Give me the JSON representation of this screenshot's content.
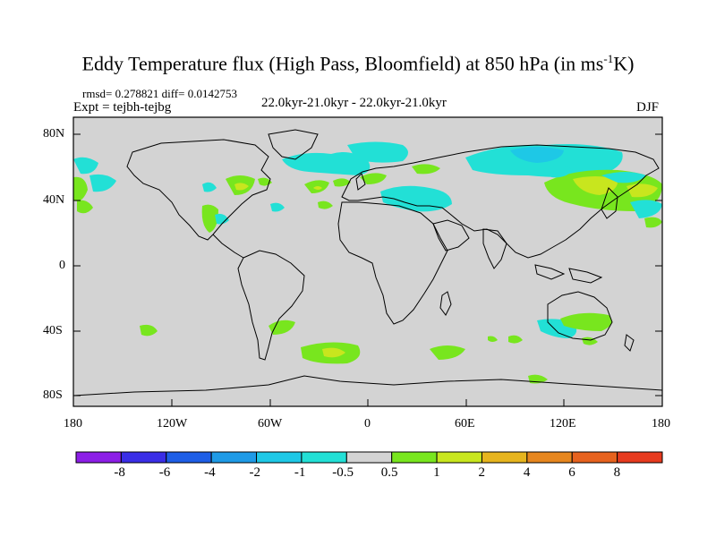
{
  "title_main": "Eddy Temperature flux (High Pass, Bloomfield) at 850 hPa (in ms",
  "title_sup": "-1",
  "title_end": "K)",
  "stats": "rmsd= 0.278821 diff= 0.0142753",
  "experiment": "Expt = tejbh-tejbg",
  "period": "22.0kyr-21.0kyr - 22.0kyr-21.0kyr",
  "season": "DJF",
  "lat_labels": [
    "80N",
    "40N",
    "0",
    "40S",
    "80S"
  ],
  "lon_labels": [
    "180",
    "120W",
    "60W",
    "0",
    "60E",
    "120E",
    "180"
  ],
  "colorbar": {
    "labels": [
      "-8",
      "-6",
      "-4",
      "-2",
      "-1",
      "-0.5",
      "0.5",
      "1",
      "2",
      "4",
      "6",
      "8"
    ],
    "colors": [
      "#8c1ee6",
      "#3a2ee6",
      "#1e5ee6",
      "#1e9ae6",
      "#1ec8e6",
      "#22e0d6",
      "#d3d3d3",
      "#78e61e",
      "#c8e61e",
      "#e6b41e",
      "#e6861e",
      "#e6621e",
      "#e63a1e"
    ]
  },
  "background_color": "#d3d3d3"
}
